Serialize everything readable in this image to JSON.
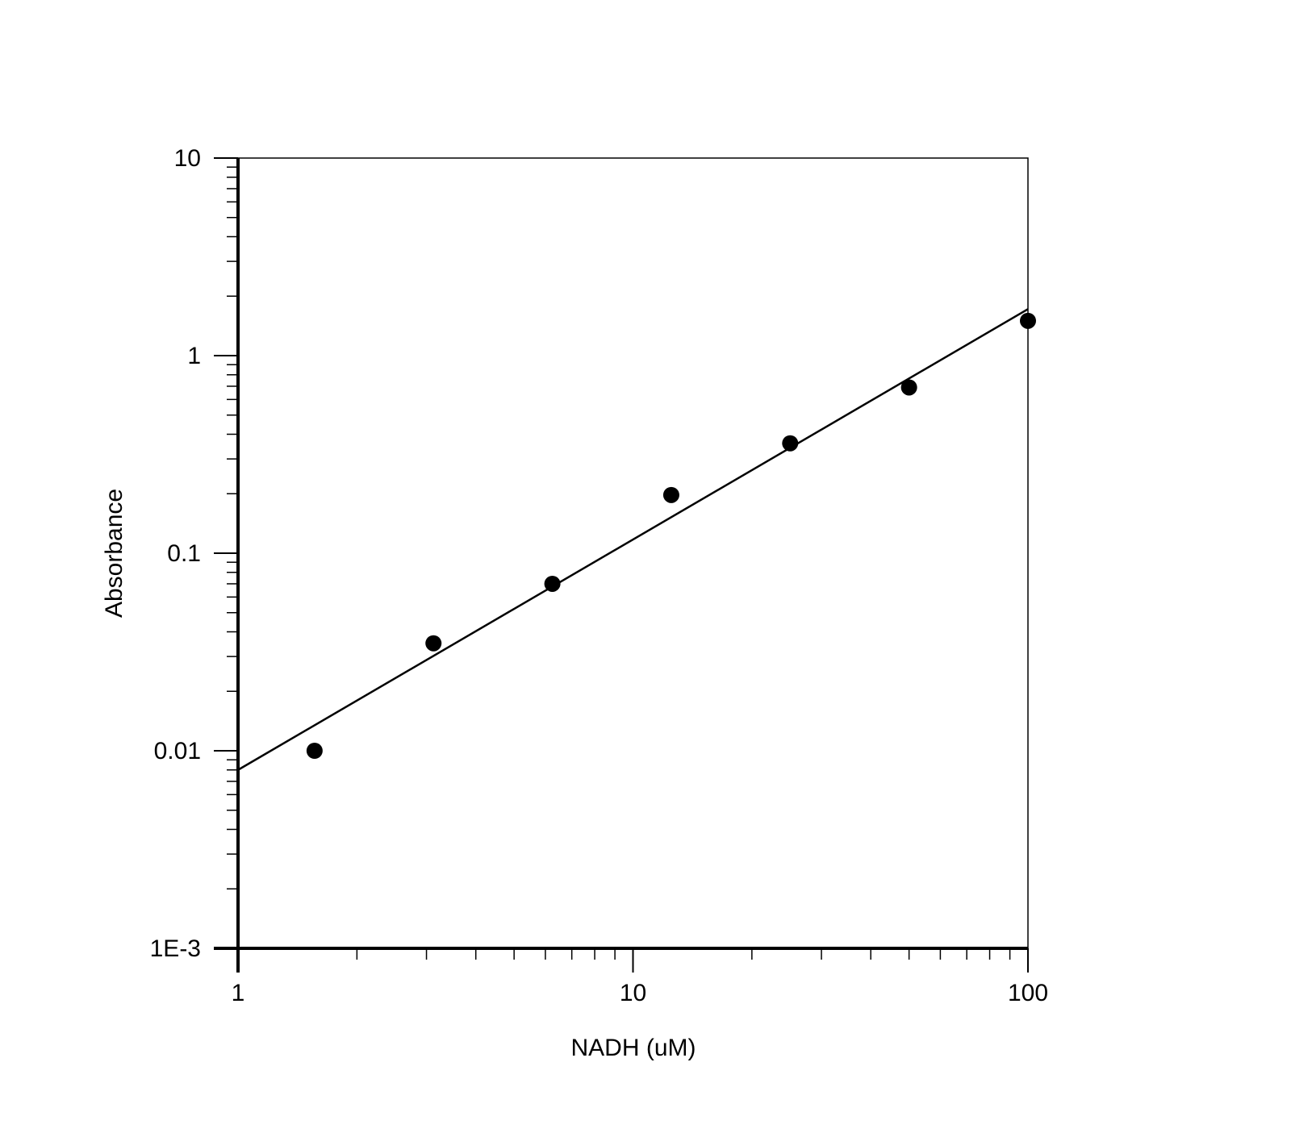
{
  "chart_data": {
    "type": "scatter",
    "x_label": "NADH (uM)",
    "y_label": "Absorbance",
    "xscale": "log",
    "yscale": "log",
    "xlim": [
      1,
      100
    ],
    "ylim": [
      0.001,
      10
    ],
    "xticks": [
      1,
      10,
      100
    ],
    "yticks": [
      {
        "value": 0.001,
        "label": "1E-3"
      },
      0.01,
      0.1,
      1,
      10
    ],
    "series": [
      {
        "type": "scatter",
        "color": "#000000",
        "x": [
          1.5625,
          3.125,
          6.25,
          12.5,
          25,
          50,
          100
        ],
        "values": [
          0.01,
          0.035,
          0.07,
          0.197,
          0.36,
          0.69,
          1.5
        ]
      },
      {
        "type": "line",
        "color": "#000000",
        "x": [
          1,
          100
        ],
        "values": [
          0.008,
          1.72
        ]
      }
    ]
  }
}
